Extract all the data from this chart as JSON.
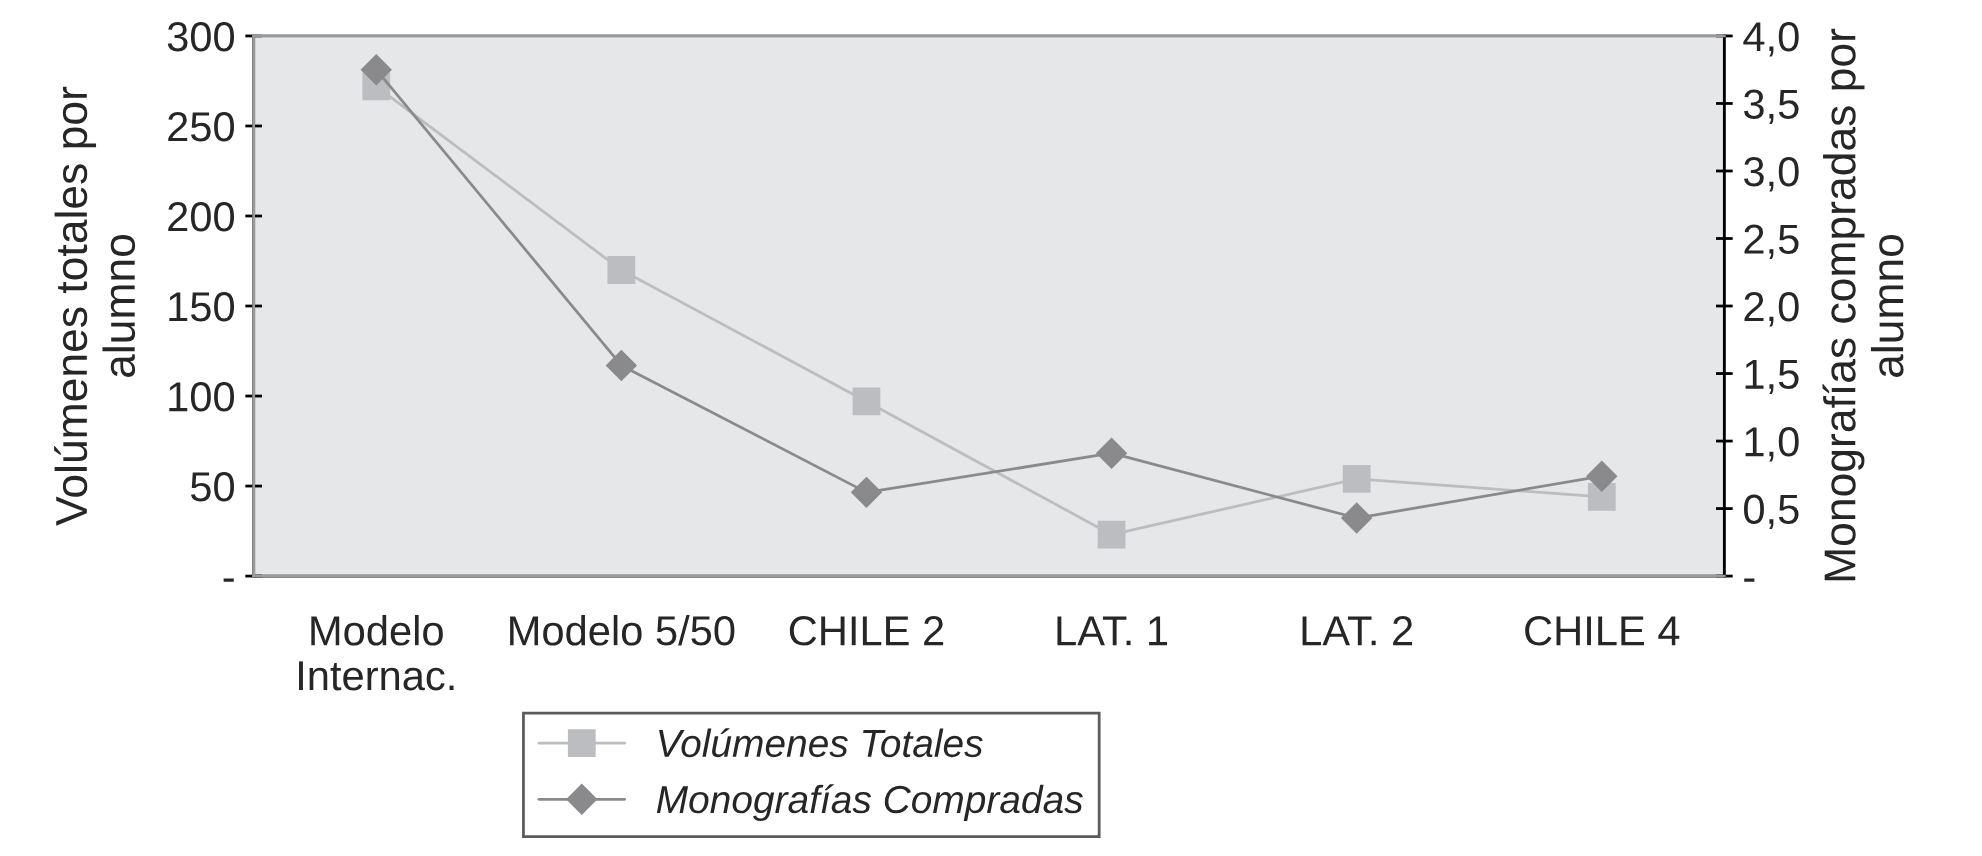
{
  "chart_data": {
    "type": "line",
    "categories": [
      "Modelo\nInternac.",
      "Modelo 5/50",
      "CHILE 2",
      "LAT. 1",
      "LAT. 2",
      "CHILE 4"
    ],
    "series": [
      {
        "name": "Volúmenes Totales",
        "color": "#bcbdc1",
        "marker": "square",
        "values": [
          272,
          170,
          97,
          23,
          54,
          44
        ]
      },
      {
        "name": "Monografías Compradas",
        "color": "#8a8a8c",
        "marker": "diamond",
        "axis": "y2",
        "values": [
          3.75,
          1.56,
          0.62,
          0.91,
          0.43,
          0.74
        ]
      }
    ],
    "ylabel": "Volúmenes totales por\nalumno",
    "y2label": "Monografías compradas por\nalumno",
    "ylim": [
      0,
      300
    ],
    "yticks": [
      {
        "value": 0,
        "label": "-"
      },
      50,
      100,
      150,
      200,
      250,
      300
    ],
    "y2lim": [
      0,
      4
    ],
    "y2ticks": [
      {
        "value": 0,
        "label": "-"
      },
      {
        "value": 0.5,
        "label": "0,5"
      },
      {
        "value": 1,
        "label": "1,0"
      },
      {
        "value": 1.5,
        "label": "1,5"
      },
      {
        "value": 2,
        "label": "2,0"
      },
      {
        "value": 2.5,
        "label": "2,5"
      },
      {
        "value": 3,
        "label": "3,0"
      },
      {
        "value": 3.5,
        "label": "3,5"
      },
      {
        "value": 4,
        "label": "4,0"
      }
    ],
    "grid": false,
    "legend": "bottom",
    "line_style": "solid"
  }
}
